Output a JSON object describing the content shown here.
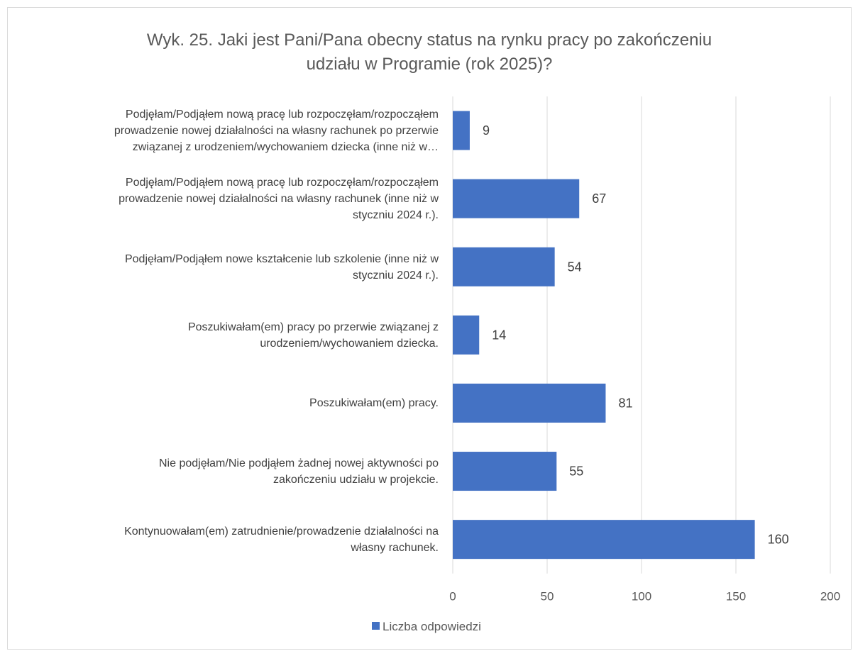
{
  "chart_data": {
    "type": "bar",
    "orientation": "horizontal",
    "title": "Wyk. 25. Jaki jest Pani/Pana obecny status na rynku pracy po zakończeniu udziału w Programie (rok 2025)?",
    "title_lines": [
      "Wyk. 25. Jaki jest Pani/Pana obecny status na rynku pracy po zakończeniu",
      "udziału w Programie (rok 2025)?"
    ],
    "categories": [
      {
        "lines": [
          "Podjęłam/Podjąłem nową pracę lub rozpoczęłam/rozpocząłem",
          "prowadzenie nowej działalności na własny rachunek po przerwie",
          "związanej z urodzeniem/wychowaniem dziecka (inne niż w…"
        ]
      },
      {
        "lines": [
          "Podjęłam/Podjąłem nową pracę lub rozpoczęłam/rozpocząłem",
          "prowadzenie nowej działalności na własny rachunek (inne niż w",
          "styczniu 2024 r.)."
        ]
      },
      {
        "lines": [
          "Podjęłam/Podjąłem nowe kształcenie lub szkolenie (inne niż w",
          "styczniu 2024 r.)."
        ]
      },
      {
        "lines": [
          "Poszukiwałam(em) pracy po przerwie związanej z",
          "urodzeniem/wychowaniem dziecka."
        ]
      },
      {
        "lines": [
          "Poszukiwałam(em) pracy."
        ]
      },
      {
        "lines": [
          "Nie podjęłam/Nie podjąłem żadnej nowej aktywności po",
          "zakończeniu udziału w projekcie."
        ]
      },
      {
        "lines": [
          "Kontynuowałam(em) zatrudnienie/prowadzenie działalności na",
          "własny rachunek."
        ]
      }
    ],
    "series": [
      {
        "name": "Liczba odpowiedzi",
        "color": "#4472C4",
        "values": [
          9,
          67,
          54,
          14,
          81,
          55,
          160
        ]
      }
    ],
    "xlim": [
      0,
      200
    ],
    "xticks": [
      "0",
      "50",
      "100",
      "150",
      "200"
    ],
    "grid": true,
    "legend": "bottom"
  }
}
